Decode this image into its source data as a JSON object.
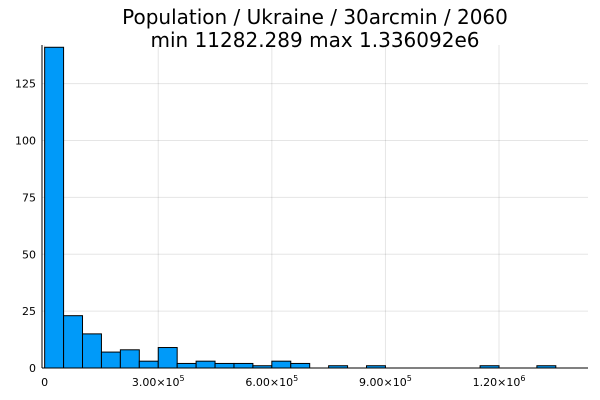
{
  "chart_data": {
    "type": "bar",
    "title_line1": "Population / Ukraine / 30arcmin / 2060",
    "title_line2": "min 11282.289  max 1.336092e6",
    "xlabel": "",
    "ylabel": "",
    "bin_width": 50000,
    "bin_start": 0,
    "counts": [
      141,
      23,
      15,
      7,
      8,
      3,
      9,
      2,
      3,
      2,
      2,
      1,
      3,
      2,
      0,
      1,
      0,
      1,
      0,
      0,
      0,
      0,
      0,
      1,
      0,
      0,
      1
    ],
    "xlim": [
      -7000,
      1435000
    ],
    "ylim": [
      0,
      142
    ],
    "x_ticks": [
      {
        "value": 0,
        "mantissa": "0",
        "exp": ""
      },
      {
        "value": 300000,
        "mantissa": "3.00×10",
        "exp": "5"
      },
      {
        "value": 600000,
        "mantissa": "6.00×10",
        "exp": "5"
      },
      {
        "value": 900000,
        "mantissa": "9.00×10",
        "exp": "5"
      },
      {
        "value": 1200000,
        "mantissa": "1.20×10",
        "exp": "6"
      }
    ],
    "y_ticks": [
      0,
      25,
      50,
      75,
      100,
      125
    ],
    "y_tick_labels": [
      "0",
      "25",
      "50",
      "75",
      "100",
      "125"
    ],
    "grid": true,
    "legend": "none",
    "bar_color": "#009af9"
  }
}
